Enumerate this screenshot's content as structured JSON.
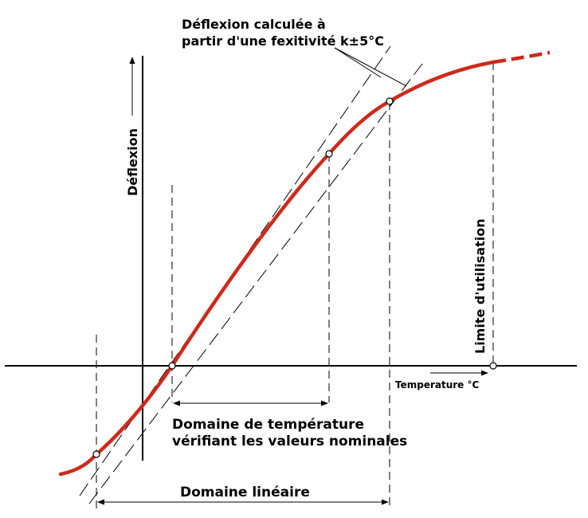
{
  "labels": {
    "calc_line1": "Déflexion calculée à",
    "calc_line2": "partir d'une fexitivité k±5°C",
    "y_axis": "Déflexion",
    "x_axis": "Temperature °C",
    "limit": "Limite d'utilisation",
    "nominal_line1": "Domaine de température",
    "nominal_line2": "vérifiant les valeurs nominales",
    "linear": "Domaine linéaire"
  },
  "colors": {
    "curve": "#cc2a1c",
    "lines": "#000000",
    "background": "#ffffff"
  }
}
